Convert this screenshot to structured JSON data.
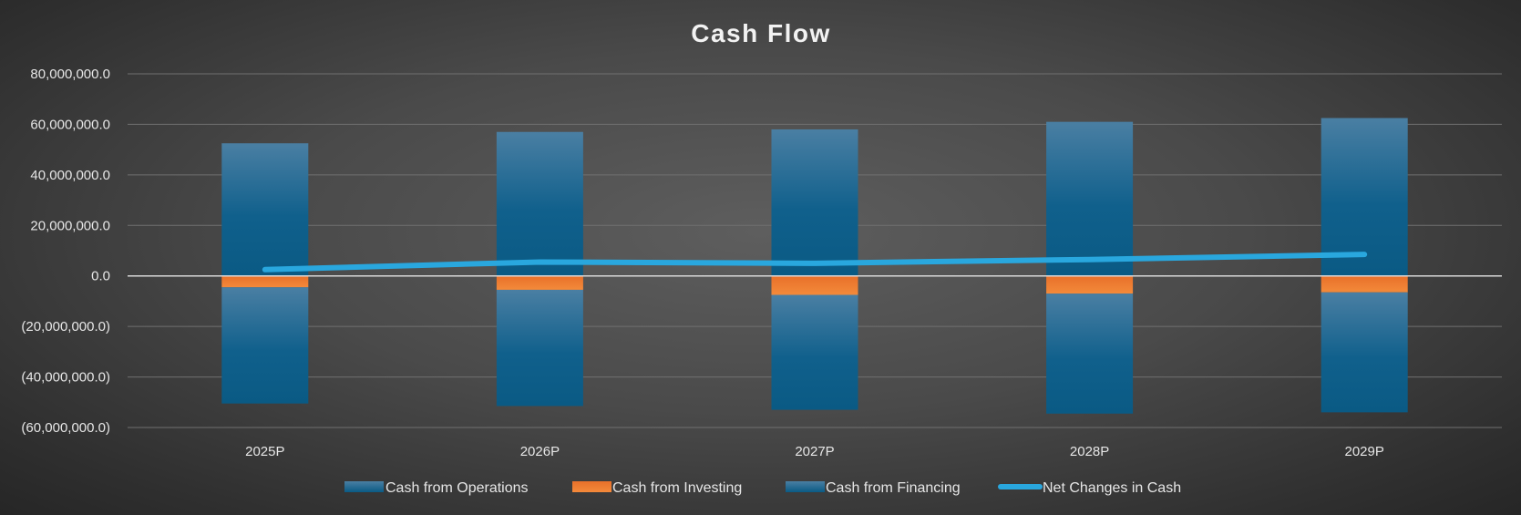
{
  "chart_data": {
    "type": "bar",
    "title": "Cash Flow",
    "xlabel": "",
    "ylabel": "",
    "ylim": [
      -60000000,
      80000000
    ],
    "yticks": [
      80000000,
      60000000,
      40000000,
      20000000,
      0,
      -20000000,
      -40000000,
      -60000000
    ],
    "ytick_labels": [
      "80,000,000.0",
      "60,000,000.0",
      "40,000,000.0",
      "20,000,000.0",
      "0.0",
      "(20,000,000.0)",
      "(40,000,000.0)",
      "(60,000,000.0)"
    ],
    "categories": [
      "2025P",
      "2026P",
      "2027P",
      "2028P",
      "2029P"
    ],
    "grid": true,
    "legend_position": "bottom",
    "series": [
      {
        "name": "Cash from Operations",
        "type": "bar",
        "color": "#1f6b94",
        "values": [
          52500000,
          57000000,
          58000000,
          61000000,
          62500000
        ]
      },
      {
        "name": "Cash from Investing",
        "type": "bar",
        "color": "#f07a2a",
        "values": [
          -4500000,
          -5500000,
          -7500000,
          -7000000,
          -6500000
        ]
      },
      {
        "name": "Cash from Financing",
        "type": "bar",
        "color": "#1a6690",
        "values": [
          -46000000,
          -46000000,
          -45500000,
          -47500000,
          -47500000
        ]
      },
      {
        "name": "Net Changes in Cash",
        "type": "line",
        "color": "#29a7de",
        "values": [
          2500000,
          5500000,
          5000000,
          6500000,
          8500000
        ]
      }
    ]
  }
}
